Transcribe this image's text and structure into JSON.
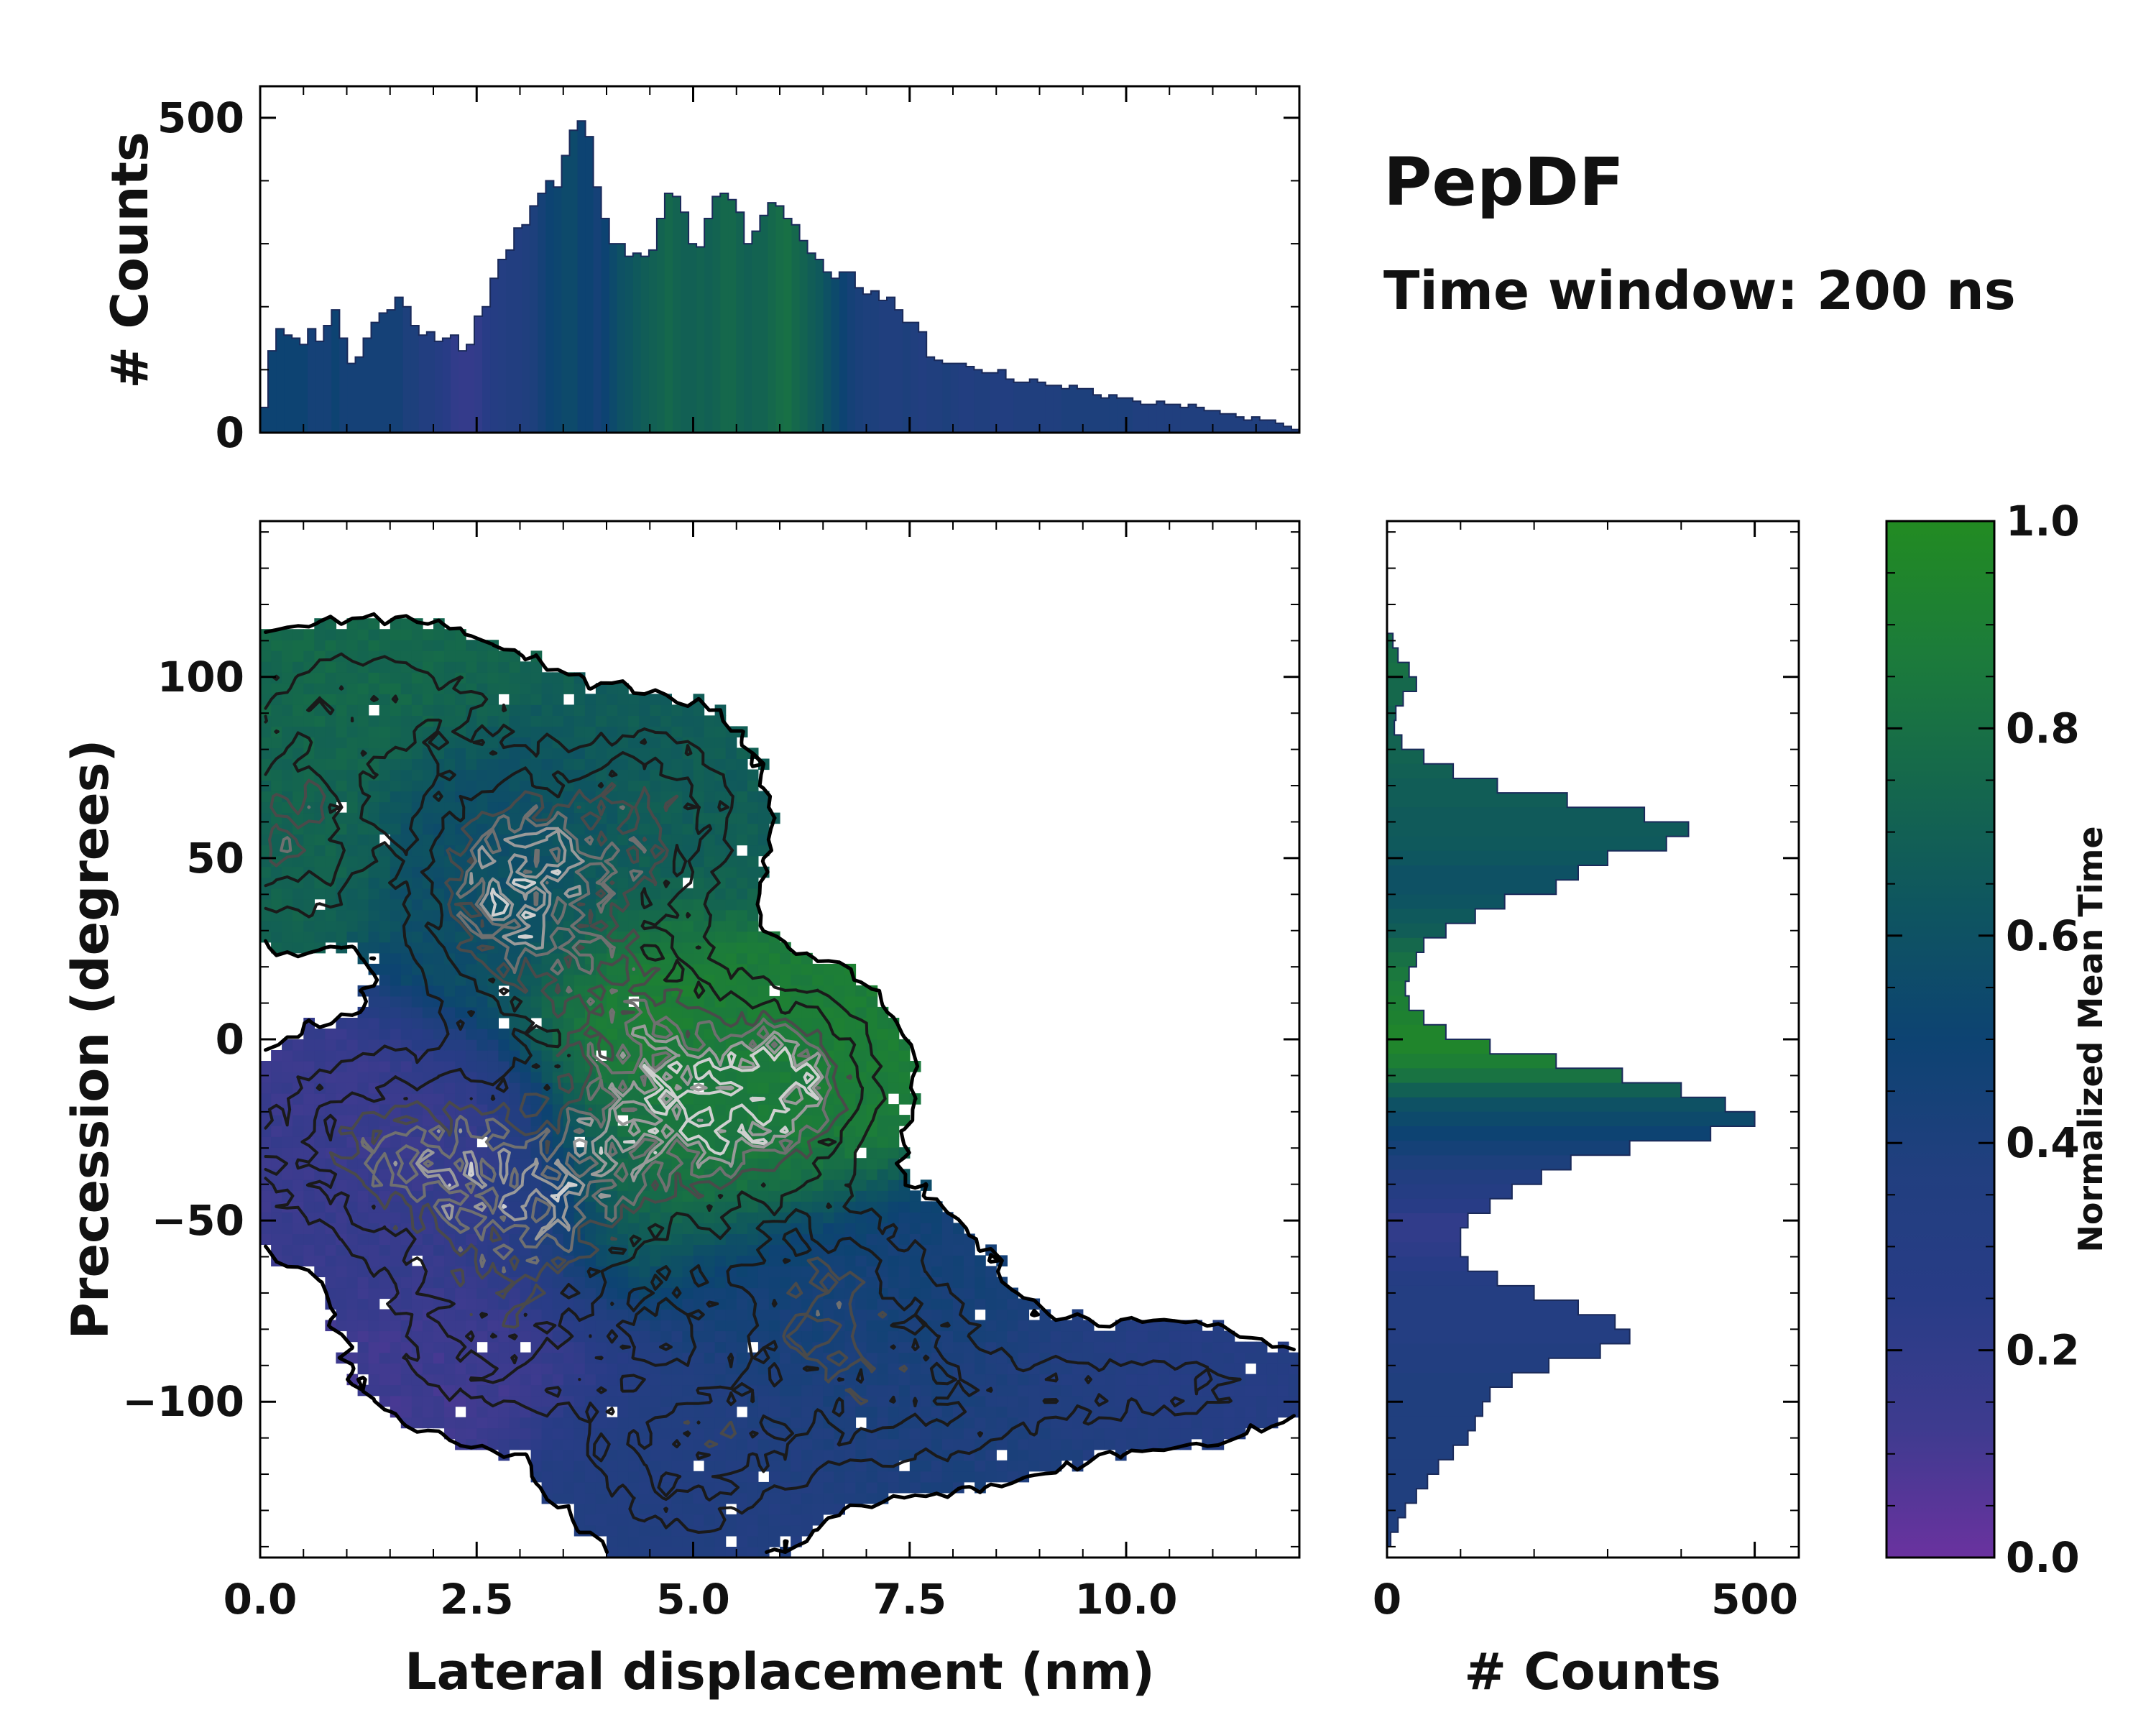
{
  "annotation": {
    "title": "PepDF",
    "subtitle": "Time window: 200 ns"
  },
  "colors": {
    "cmap": [
      "#6a329f",
      "#3e3b8f",
      "#283c86",
      "#213f7f",
      "#0d4372",
      "#0e5560",
      "#15684c",
      "#1c7c3a",
      "#228b22"
    ],
    "contour_dark": "#1a1a1a",
    "contour_light": "#9a9a9a",
    "outline": "#000000"
  },
  "chart_data": {
    "type": "heatmap",
    "main": {
      "xlabel": "Lateral displacement (nm)",
      "ylabel": "Precession (degrees)",
      "xlim": [
        0,
        12
      ],
      "ylim": [
        -143,
        143
      ],
      "xticks": [
        "0.0",
        "2.5",
        "5.0",
        "7.5",
        "10.0"
      ],
      "xtick_values": [
        0,
        2.5,
        5,
        7.5,
        10
      ],
      "yticks": [
        "100",
        "50",
        "0",
        "−50",
        "−100"
      ],
      "ytick_values": [
        100,
        50,
        0,
        -50,
        -100
      ],
      "clusters": [
        {
          "x": 0.4,
          "y": 58,
          "sx": 0.55,
          "sy": 16,
          "mean_time": 0.72,
          "weight": 1.0
        },
        {
          "x": 2.9,
          "y": 42,
          "sx": 0.75,
          "sy": 22,
          "mean_time": 0.58,
          "weight": 1.3
        },
        {
          "x": 4.5,
          "y": 60,
          "sx": 0.7,
          "sy": 18,
          "mean_time": 0.68,
          "weight": 0.8
        },
        {
          "x": 1.3,
          "y": 95,
          "sx": 1.1,
          "sy": 12,
          "mean_time": 0.75,
          "weight": 0.5
        },
        {
          "x": 4.2,
          "y": 10,
          "sx": 0.7,
          "sy": 18,
          "mean_time": 0.95,
          "weight": 0.7
        },
        {
          "x": 5.3,
          "y": -20,
          "sx": 0.9,
          "sy": 18,
          "mean_time": 0.85,
          "weight": 1.3
        },
        {
          "x": 6.2,
          "y": -8,
          "sx": 0.6,
          "sy": 14,
          "mean_time": 0.9,
          "weight": 0.8
        },
        {
          "x": 1.7,
          "y": -30,
          "sx": 1.2,
          "sy": 18,
          "mean_time": 0.15,
          "weight": 0.9
        },
        {
          "x": 2.8,
          "y": -50,
          "sx": 0.9,
          "sy": 18,
          "mean_time": 0.2,
          "weight": 0.7
        },
        {
          "x": 3.9,
          "y": -40,
          "sx": 0.6,
          "sy": 20,
          "mean_time": 0.95,
          "weight": 0.5
        },
        {
          "x": 2.7,
          "y": -85,
          "sx": 0.9,
          "sy": 14,
          "mean_time": 0.12,
          "weight": 0.6
        },
        {
          "x": 6.5,
          "y": -70,
          "sx": 1.0,
          "sy": 16,
          "mean_time": 0.45,
          "weight": 0.8
        },
        {
          "x": 5.0,
          "y": -115,
          "sx": 0.9,
          "sy": 16,
          "mean_time": 0.35,
          "weight": 0.7
        },
        {
          "x": 7.5,
          "y": -100,
          "sx": 1.3,
          "sy": 14,
          "mean_time": 0.4,
          "weight": 0.6
        },
        {
          "x": 10.5,
          "y": -95,
          "sx": 1.0,
          "sy": 10,
          "mean_time": 0.3,
          "weight": 0.4
        }
      ]
    },
    "top_histogram": {
      "ylabel": "# Counts",
      "ylim": [
        0,
        550
      ],
      "yticks": [
        "500",
        "0"
      ],
      "ytick_values": [
        500,
        0
      ],
      "bin_range": [
        0,
        12
      ],
      "counts": [
        40,
        130,
        165,
        155,
        150,
        140,
        165,
        145,
        170,
        195,
        150,
        110,
        120,
        150,
        175,
        190,
        195,
        215,
        200,
        170,
        155,
        160,
        145,
        150,
        155,
        130,
        140,
        185,
        200,
        245,
        275,
        290,
        325,
        330,
        360,
        380,
        400,
        390,
        440,
        480,
        495,
        470,
        390,
        340,
        300,
        300,
        280,
        285,
        280,
        290,
        340,
        380,
        375,
        350,
        300,
        295,
        340,
        375,
        380,
        370,
        350,
        300,
        320,
        345,
        365,
        360,
        340,
        330,
        305,
        285,
        275,
        255,
        245,
        255,
        255,
        230,
        220,
        225,
        210,
        215,
        195,
        175,
        175,
        160,
        120,
        115,
        110,
        110,
        110,
        105,
        100,
        95,
        95,
        100,
        85,
        80,
        80,
        85,
        80,
        75,
        75,
        70,
        75,
        70,
        70,
        60,
        55,
        60,
        55,
        55,
        50,
        45,
        45,
        50,
        45,
        45,
        40,
        45,
        40,
        35,
        35,
        30,
        30,
        25,
        20,
        25,
        20,
        20,
        15,
        10,
        5
      ],
      "mean_time": [
        0.5,
        0.5,
        0.5,
        0.5,
        0.5,
        0.5,
        0.45,
        0.45,
        0.45,
        0.5,
        0.45,
        0.45,
        0.45,
        0.45,
        0.45,
        0.45,
        0.45,
        0.45,
        0.4,
        0.4,
        0.35,
        0.35,
        0.3,
        0.25,
        0.2,
        0.18,
        0.18,
        0.2,
        0.25,
        0.3,
        0.32,
        0.35,
        0.35,
        0.38,
        0.4,
        0.45,
        0.5,
        0.52,
        0.55,
        0.55,
        0.5,
        0.5,
        0.45,
        0.5,
        0.55,
        0.6,
        0.62,
        0.65,
        0.68,
        0.7,
        0.72,
        0.75,
        0.72,
        0.7,
        0.7,
        0.72,
        0.7,
        0.72,
        0.75,
        0.75,
        0.72,
        0.7,
        0.72,
        0.72,
        0.75,
        0.78,
        0.8,
        0.75,
        0.72,
        0.68,
        0.65,
        0.6,
        0.55,
        0.5,
        0.45,
        0.42,
        0.4,
        0.4,
        0.38,
        0.38,
        0.38,
        0.4,
        0.38,
        0.35,
        0.38,
        0.38,
        0.4,
        0.38,
        0.35,
        0.35,
        0.38,
        0.38,
        0.35,
        0.35,
        0.35,
        0.38,
        0.38,
        0.38,
        0.38,
        0.38,
        0.38,
        0.4,
        0.4,
        0.4,
        0.4,
        0.4,
        0.4,
        0.4,
        0.4,
        0.4,
        0.38,
        0.38,
        0.38,
        0.38,
        0.38,
        0.38,
        0.38,
        0.38,
        0.38,
        0.38,
        0.38,
        0.38,
        0.38,
        0.38,
        0.38,
        0.38,
        0.38,
        0.38,
        0.38,
        0.38,
        0.38
      ]
    },
    "right_histogram": {
      "xlabel": "# Counts",
      "xlim": [
        0,
        560
      ],
      "xticks": [
        "0",
        "500"
      ],
      "xtick_values": [
        0,
        500
      ],
      "bin_range": [
        -143,
        143
      ],
      "bins": [
        {
          "y": 110,
          "count": 8,
          "mean_time": 0.75
        },
        {
          "y": 106,
          "count": 15,
          "mean_time": 0.78
        },
        {
          "y": 102,
          "count": 30,
          "mean_time": 0.8
        },
        {
          "y": 98,
          "count": 40,
          "mean_time": 0.75
        },
        {
          "y": 94,
          "count": 22,
          "mean_time": 0.75
        },
        {
          "y": 90,
          "count": 12,
          "mean_time": 0.72
        },
        {
          "y": 86,
          "count": 10,
          "mean_time": 0.7
        },
        {
          "y": 82,
          "count": 20,
          "mean_time": 0.72
        },
        {
          "y": 78,
          "count": 50,
          "mean_time": 0.72
        },
        {
          "y": 74,
          "count": 90,
          "mean_time": 0.7
        },
        {
          "y": 70,
          "count": 150,
          "mean_time": 0.68
        },
        {
          "y": 66,
          "count": 245,
          "mean_time": 0.68
        },
        {
          "y": 62,
          "count": 350,
          "mean_time": 0.66
        },
        {
          "y": 58,
          "count": 410,
          "mean_time": 0.66
        },
        {
          "y": 54,
          "count": 380,
          "mean_time": 0.65
        },
        {
          "y": 50,
          "count": 300,
          "mean_time": 0.63
        },
        {
          "y": 46,
          "count": 260,
          "mean_time": 0.6
        },
        {
          "y": 42,
          "count": 230,
          "mean_time": 0.6
        },
        {
          "y": 38,
          "count": 160,
          "mean_time": 0.62
        },
        {
          "y": 34,
          "count": 120,
          "mean_time": 0.65
        },
        {
          "y": 30,
          "count": 80,
          "mean_time": 0.68
        },
        {
          "y": 26,
          "count": 50,
          "mean_time": 0.75
        },
        {
          "y": 22,
          "count": 40,
          "mean_time": 0.8
        },
        {
          "y": 18,
          "count": 30,
          "mean_time": 0.85
        },
        {
          "y": 14,
          "count": 25,
          "mean_time": 0.88
        },
        {
          "y": 10,
          "count": 30,
          "mean_time": 0.9
        },
        {
          "y": 6,
          "count": 50,
          "mean_time": 0.92
        },
        {
          "y": 2,
          "count": 80,
          "mean_time": 0.95
        },
        {
          "y": -2,
          "count": 140,
          "mean_time": 0.95
        },
        {
          "y": -6,
          "count": 230,
          "mean_time": 0.9
        },
        {
          "y": -10,
          "count": 320,
          "mean_time": 0.82
        },
        {
          "y": -14,
          "count": 400,
          "mean_time": 0.7
        },
        {
          "y": -18,
          "count": 460,
          "mean_time": 0.6
        },
        {
          "y": -22,
          "count": 500,
          "mean_time": 0.55
        },
        {
          "y": -26,
          "count": 440,
          "mean_time": 0.5
        },
        {
          "y": -30,
          "count": 330,
          "mean_time": 0.45
        },
        {
          "y": -34,
          "count": 250,
          "mean_time": 0.4
        },
        {
          "y": -38,
          "count": 210,
          "mean_time": 0.35
        },
        {
          "y": -42,
          "count": 170,
          "mean_time": 0.3
        },
        {
          "y": -46,
          "count": 140,
          "mean_time": 0.25
        },
        {
          "y": -50,
          "count": 110,
          "mean_time": 0.2
        },
        {
          "y": -54,
          "count": 100,
          "mean_time": 0.2
        },
        {
          "y": -58,
          "count": 100,
          "mean_time": 0.22
        },
        {
          "y": -62,
          "count": 110,
          "mean_time": 0.25
        },
        {
          "y": -66,
          "count": 150,
          "mean_time": 0.3
        },
        {
          "y": -70,
          "count": 200,
          "mean_time": 0.32
        },
        {
          "y": -74,
          "count": 260,
          "mean_time": 0.33
        },
        {
          "y": -78,
          "count": 310,
          "mean_time": 0.33
        },
        {
          "y": -82,
          "count": 330,
          "mean_time": 0.33
        },
        {
          "y": -86,
          "count": 290,
          "mean_time": 0.35
        },
        {
          "y": -90,
          "count": 220,
          "mean_time": 0.35
        },
        {
          "y": -94,
          "count": 170,
          "mean_time": 0.38
        },
        {
          "y": -98,
          "count": 140,
          "mean_time": 0.38
        },
        {
          "y": -102,
          "count": 130,
          "mean_time": 0.38
        },
        {
          "y": -106,
          "count": 120,
          "mean_time": 0.38
        },
        {
          "y": -110,
          "count": 110,
          "mean_time": 0.38
        },
        {
          "y": -114,
          "count": 90,
          "mean_time": 0.38
        },
        {
          "y": -118,
          "count": 70,
          "mean_time": 0.38
        },
        {
          "y": -122,
          "count": 55,
          "mean_time": 0.38
        },
        {
          "y": -126,
          "count": 40,
          "mean_time": 0.38
        },
        {
          "y": -130,
          "count": 25,
          "mean_time": 0.38
        },
        {
          "y": -134,
          "count": 15,
          "mean_time": 0.38
        },
        {
          "y": -138,
          "count": 5,
          "mean_time": 0.38
        }
      ]
    },
    "colorbar": {
      "label": "Normalized Mean Time",
      "range": [
        0,
        1
      ],
      "ticks": [
        "1.0",
        "0.8",
        "0.6",
        "0.4",
        "0.2",
        "0.0"
      ],
      "tick_values": [
        1.0,
        0.8,
        0.6,
        0.4,
        0.2,
        0.0
      ]
    }
  }
}
